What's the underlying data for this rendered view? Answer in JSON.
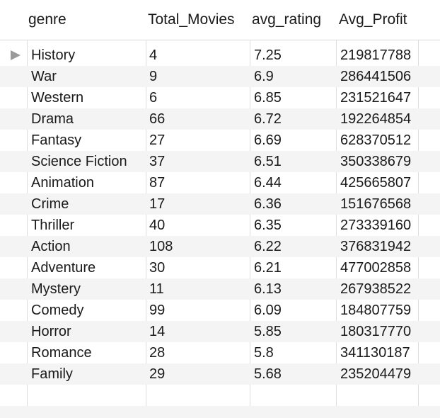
{
  "table": {
    "columns": [
      "genre",
      "Total_Movies",
      "avg_rating",
      "Avg_Profit"
    ],
    "rows": [
      {
        "genre": "History",
        "total_movies": "4",
        "avg_rating": "7.25",
        "avg_profit": "219817788"
      },
      {
        "genre": "War",
        "total_movies": "9",
        "avg_rating": "6.9",
        "avg_profit": "286441506"
      },
      {
        "genre": "Western",
        "total_movies": "6",
        "avg_rating": "6.85",
        "avg_profit": "231521647"
      },
      {
        "genre": "Drama",
        "total_movies": "66",
        "avg_rating": "6.72",
        "avg_profit": "192264854"
      },
      {
        "genre": "Fantasy",
        "total_movies": "27",
        "avg_rating": "6.69",
        "avg_profit": "628370512"
      },
      {
        "genre": "Science Fiction",
        "total_movies": "37",
        "avg_rating": "6.51",
        "avg_profit": "350338679"
      },
      {
        "genre": "Animation",
        "total_movies": "87",
        "avg_rating": "6.44",
        "avg_profit": "425665807"
      },
      {
        "genre": "Crime",
        "total_movies": "17",
        "avg_rating": "6.36",
        "avg_profit": "151676568"
      },
      {
        "genre": "Thriller",
        "total_movies": "40",
        "avg_rating": "6.35",
        "avg_profit": "273339160"
      },
      {
        "genre": "Action",
        "total_movies": "108",
        "avg_rating": "6.22",
        "avg_profit": "376831942"
      },
      {
        "genre": "Adventure",
        "total_movies": "30",
        "avg_rating": "6.21",
        "avg_profit": "477002858"
      },
      {
        "genre": "Mystery",
        "total_movies": "11",
        "avg_rating": "6.13",
        "avg_profit": "267938522"
      },
      {
        "genre": "Comedy",
        "total_movies": "99",
        "avg_rating": "6.09",
        "avg_profit": "184807759"
      },
      {
        "genre": "Horror",
        "total_movies": "14",
        "avg_rating": "5.85",
        "avg_profit": "180317770"
      },
      {
        "genre": "Romance",
        "total_movies": "28",
        "avg_rating": "5.8",
        "avg_profit": "341130187"
      },
      {
        "genre": "Family",
        "total_movies": "29",
        "avg_rating": "5.68",
        "avg_profit": "235204479"
      }
    ],
    "current_row_icon": "play-triangle-icon"
  }
}
